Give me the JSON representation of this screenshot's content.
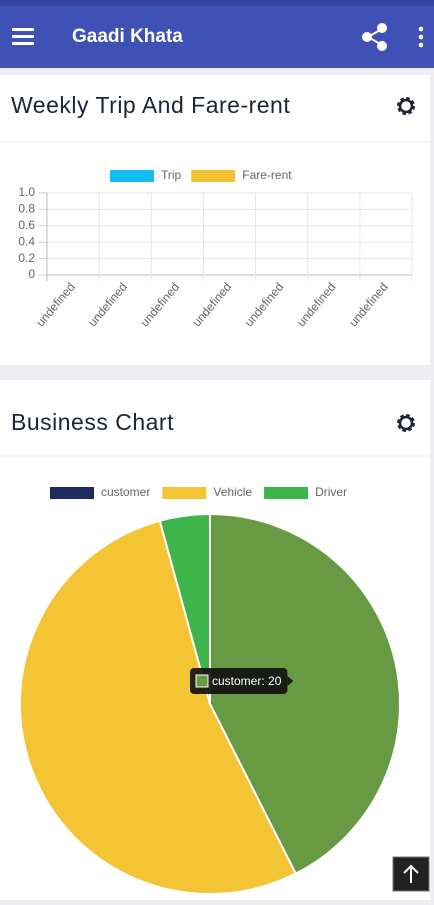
{
  "app_bar": {
    "title": "Gaadi Khata"
  },
  "chart_data": [
    {
      "type": "bar",
      "title": "Weekly Trip And Fare-rent",
      "categories": [
        "undefined",
        "undefined",
        "undefined",
        "undefined",
        "undefined",
        "undefined",
        "undefined"
      ],
      "series": [
        {
          "name": "Trip",
          "color": "#14bdf3",
          "values": [
            null,
            null,
            null,
            null,
            null,
            null,
            null
          ]
        },
        {
          "name": "Fare-rent",
          "color": "#f5c236",
          "values": [
            null,
            null,
            null,
            null,
            null,
            null,
            null
          ]
        }
      ],
      "ylim": [
        0,
        1
      ],
      "yticks": [
        0,
        0.2,
        0.4,
        0.6,
        0.8,
        {
          "value": 1,
          "label": "1.0"
        }
      ],
      "grid": true,
      "legend": "top"
    },
    {
      "type": "pie",
      "title": "Business Chart",
      "categories": [
        "customer",
        "Vehicle",
        "Driver"
      ],
      "values": [
        20,
        25,
        2
      ],
      "colors": [
        "#1f2a5e",
        "#f3c433",
        "#3db54a"
      ],
      "highlight": {
        "index": 0,
        "color": "#679a43"
      },
      "tooltip": {
        "index": 0,
        "label": "customer: 20"
      },
      "legend": "top"
    }
  ]
}
